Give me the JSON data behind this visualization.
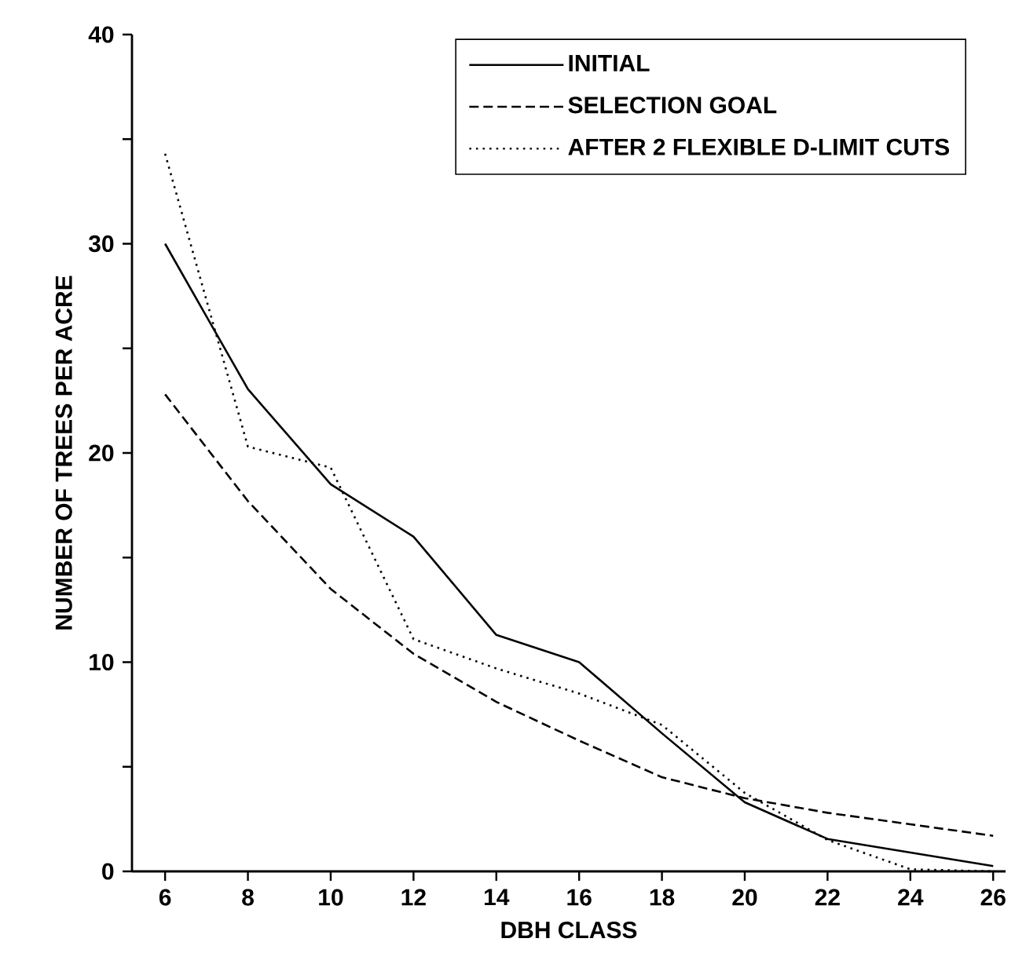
{
  "chart_data": {
    "type": "line",
    "xlabel": "DBH CLASS",
    "ylabel": "NUMBER OF TREES PER ACRE",
    "x": [
      6,
      8,
      10,
      12,
      14,
      16,
      18,
      20,
      22,
      24,
      26
    ],
    "series": [
      {
        "name": "INITIAL",
        "color": "#000000",
        "line_style": "solid",
        "values": [
          30,
          23.05,
          18.5,
          16,
          11.3,
          10,
          6.6,
          3.3,
          1.55,
          0.9,
          0.25
        ]
      },
      {
        "name": "SELECTION GOAL",
        "color": "#000000",
        "line_style": "dashed",
        "values": [
          22.8,
          17.7,
          13.5,
          10.4,
          8.1,
          6.25,
          4.5,
          3.5,
          2.8,
          2.25,
          1.7
        ]
      },
      {
        "name": "AFTER 2 FLEXIBLE D-LIMIT CUTS",
        "color": "#000000",
        "line_style": "dotted",
        "values": [
          34.3,
          20.3,
          19.3,
          11.1,
          9.7,
          8.5,
          7.0,
          3.75,
          1.5,
          0.1,
          0
        ]
      }
    ],
    "xlim": [
      5.2,
      26.3
    ],
    "ylim": [
      0,
      40
    ],
    "xticks": [
      6,
      8,
      10,
      12,
      14,
      16,
      18,
      20,
      22,
      24,
      26
    ],
    "yticks": [
      0,
      {
        "value": 5,
        "label": null
      },
      10,
      {
        "value": 15,
        "label": null
      },
      20,
      {
        "value": 25,
        "label": null
      },
      30,
      {
        "value": 35,
        "label": null
      },
      40
    ],
    "grid": false,
    "legend": "top right",
    "marker": "none"
  }
}
